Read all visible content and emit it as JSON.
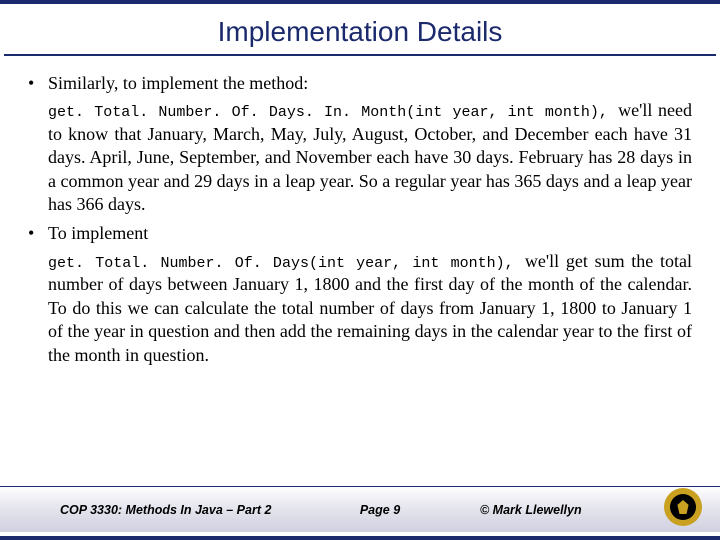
{
  "title": "Implementation Details",
  "bullet1_intro": "Similarly, to implement the method:",
  "para1_code": "get. Total. Number. Of. Days. In. Month(int year, int month), ",
  "para1_text": "we'll need to know that January, March, May, July, August, October, and December each have 31 days. April, June, September, and November each have 30 days.  February has 28 days in a common year and 29 days in a leap year.   So a regular year has 365 days and a leap year has 366 days.",
  "bullet2_intro": "To implement",
  "para2_code": "get. Total. Number. Of. Days(int year, int month), ",
  "para2_text": "we'll get sum the total number of days between January 1, 1800 and the first day of the month of the calendar.  To do this we can calculate the total number of days from January 1, 1800 to January 1 of the year in question and then add the remaining days in the calendar year to the first of the month in question.",
  "footer": {
    "course": "COP 3330: Methods In Java – Part 2",
    "page": "Page 9",
    "author": "© Mark Llewellyn"
  },
  "colors": {
    "heading": "#1a2a6c",
    "border": "#1a2a6c",
    "text": "#000000",
    "logo_gold": "#c9a020",
    "logo_black": "#000000",
    "footer_grad_top": "#ffffff",
    "footer_grad_bottom": "#d0d0e0"
  },
  "fonts": {
    "title_family": "Arial",
    "title_size_pt": 21,
    "body_family": "Times New Roman",
    "body_size_pt": 14,
    "code_family": "Courier New",
    "code_size_pt": 11,
    "footer_family": "Arial",
    "footer_size_pt": 9.5
  }
}
